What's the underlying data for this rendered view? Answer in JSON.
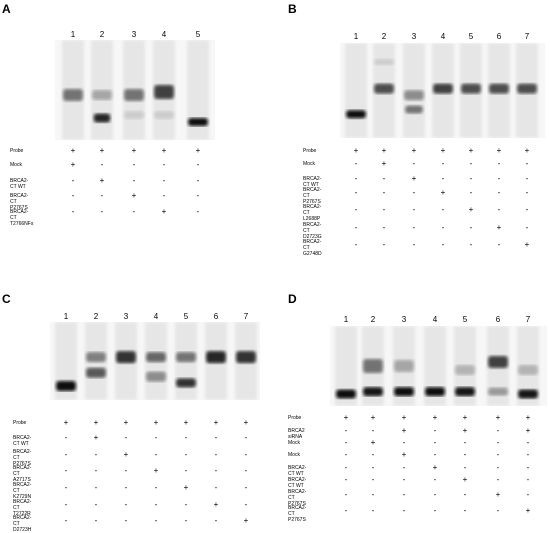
{
  "panels": [
    {
      "letter": "A",
      "lanes": [
        "1",
        "2",
        "3",
        "4",
        "5"
      ],
      "rows": [
        {
          "label": "Probe",
          "marks": [
            "+",
            "+",
            "+",
            "+",
            "+"
          ]
        },
        {
          "label": "Mock",
          "marks": [
            "+",
            "-",
            "-",
            "-",
            "-"
          ]
        },
        {
          "label": "BRCA2-CT WT",
          "marks": [
            "-",
            "+",
            "-",
            "-",
            "-"
          ]
        },
        {
          "label": "BRCA2-CT P2767S",
          "marks": [
            "-",
            "-",
            "+",
            "-",
            "-"
          ]
        },
        {
          "label": "BRCA2-CT T2766NFs",
          "marks": [
            "-",
            "-",
            "-",
            "+",
            "-"
          ]
        }
      ]
    },
    {
      "letter": "B",
      "lanes": [
        "1",
        "2",
        "3",
        "4",
        "5",
        "6",
        "7"
      ],
      "rows": [
        {
          "label": "Probe",
          "marks": [
            "+",
            "+",
            "+",
            "+",
            "+",
            "+",
            "+"
          ]
        },
        {
          "label": "Mock",
          "marks": [
            "-",
            "+",
            "-",
            "-",
            "-",
            "-",
            "-"
          ]
        },
        {
          "label": "BRCA2-CT WT",
          "marks": [
            "-",
            "-",
            "+",
            "-",
            "-",
            "-",
            "-"
          ]
        },
        {
          "label": "BRCA2-CT\nP2767S",
          "marks": [
            "-",
            "-",
            "-",
            "+",
            "-",
            "-",
            "-"
          ]
        },
        {
          "label": "BRCA2-CT\nL2688P",
          "marks": [
            "-",
            "-",
            "-",
            "-",
            "+",
            "-",
            "-"
          ]
        },
        {
          "label": "BRCA2-CT\nD2723G",
          "marks": [
            "-",
            "-",
            "-",
            "-",
            "-",
            "+",
            "-"
          ]
        },
        {
          "label": "BRCA2-CT\nG2748D",
          "marks": [
            "-",
            "-",
            "-",
            "-",
            "-",
            "-",
            "+"
          ]
        }
      ]
    },
    {
      "letter": "C",
      "lanes": [
        "1",
        "2",
        "3",
        "4",
        "5",
        "6",
        "7"
      ],
      "rows": [
        {
          "label": "Probe",
          "marks": [
            "+",
            "+",
            "+",
            "+",
            "+",
            "+",
            "+"
          ]
        },
        {
          "label": "BRCA2-CT WT",
          "marks": [
            "-",
            "+",
            "-",
            "-",
            "-",
            "-",
            "-"
          ]
        },
        {
          "label": "BRCA2-CT\nP2767S",
          "marks": [
            "-",
            "-",
            "+",
            "-",
            "-",
            "-",
            "-"
          ]
        },
        {
          "label": "BRCA2-CT\nA2717S",
          "marks": [
            "-",
            "-",
            "-",
            "+",
            "-",
            "-",
            "-"
          ]
        },
        {
          "label": "BRCA2-CT\nK2729N",
          "marks": [
            "-",
            "-",
            "-",
            "-",
            "+",
            "-",
            "-"
          ]
        },
        {
          "label": "BRCA2-CT\nT2722R",
          "marks": [
            "-",
            "-",
            "-",
            "-",
            "-",
            "+",
            "-"
          ]
        },
        {
          "label": "BRCA2-CT\nD2723H",
          "marks": [
            "-",
            "-",
            "-",
            "-",
            "-",
            "-",
            "+"
          ]
        }
      ]
    },
    {
      "letter": "D",
      "lanes": [
        "1",
        "2",
        "3",
        "4",
        "5",
        "6",
        "7"
      ],
      "rows": [
        {
          "label": "Probe",
          "marks": [
            "+",
            "+",
            "+",
            "+",
            "+",
            "+",
            "+"
          ]
        },
        {
          "label": "BRCA2 siRNA",
          "marks": [
            "-",
            "-",
            "+",
            "-",
            "+",
            "-",
            "+"
          ]
        },
        {
          "label": "Mock",
          "marks": [
            "-",
            "+",
            "-",
            "-",
            "-",
            "-",
            "-"
          ]
        },
        {
          "label": "Mock",
          "marks": [
            "-",
            "-",
            "+",
            "-",
            "-",
            "-",
            "-"
          ]
        },
        {
          "label": "BRCA2-CT WT",
          "marks": [
            "-",
            "-",
            "-",
            "+",
            "-",
            "-",
            "-"
          ]
        },
        {
          "label": "BRCA2-CT WT",
          "marks": [
            "-",
            "-",
            "-",
            "-",
            "+",
            "-",
            "-"
          ]
        },
        {
          "label": "BRCA2-CT\nP2767S",
          "marks": [
            "-",
            "-",
            "-",
            "-",
            "-",
            "+",
            "-"
          ]
        },
        {
          "label": "BRCA2-CT\nP2767S",
          "marks": [
            "-",
            "-",
            "-",
            "-",
            "-",
            "-",
            "+"
          ]
        }
      ]
    }
  ]
}
